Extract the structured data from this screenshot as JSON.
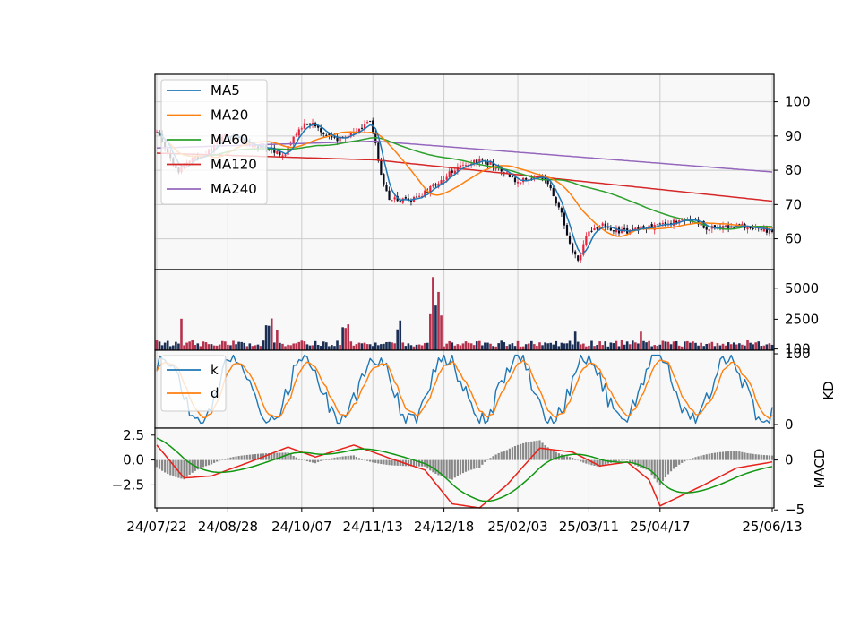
{
  "chart_data": {
    "type": "candlestick-multi-panel",
    "x_tick_labels": [
      "24/07/22",
      "24/08/28",
      "24/10/07",
      "24/11/13",
      "24/12/18",
      "25/02/03",
      "25/03/11",
      "25/04/17",
      "25/06/13"
    ],
    "bar_count": 226,
    "colors": {
      "MA5": "#1f77b4",
      "MA20": "#ff7f0e",
      "MA60": "#2ca02c",
      "MA120": "#d62728",
      "MA240": "#9467bd",
      "k": "#1f77b4",
      "d": "#ff7f0e",
      "up": "#e8213a",
      "down": "#0a0a1a",
      "vol_up": "#b5324d",
      "vol_down": "#1b2f55",
      "macd_dif": "#e8211a",
      "macd_dem": "#109610",
      "macd_hist": "#888888",
      "panel_bg": "#f8f8f8",
      "grid": "#cccccc"
    },
    "price_panel": {
      "ylim": [
        51,
        108
      ],
      "yticks": [
        "60",
        "70",
        "80",
        "90",
        "100"
      ],
      "grid": true,
      "legend_position": "upper-left",
      "legend": [
        "MA5",
        "MA20",
        "MA60",
        "MA120",
        "MA240"
      ],
      "anchors": [
        [
          0,
          91
        ],
        [
          4,
          85
        ],
        [
          8,
          80
        ],
        [
          12,
          83
        ],
        [
          17,
          84
        ],
        [
          22,
          88
        ],
        [
          26,
          91
        ],
        [
          30,
          89
        ],
        [
          36,
          87
        ],
        [
          42,
          86
        ],
        [
          46,
          84
        ],
        [
          52,
          92
        ],
        [
          56,
          94
        ],
        [
          61,
          91
        ],
        [
          65,
          89
        ],
        [
          70,
          90
        ],
        [
          74,
          92
        ],
        [
          78,
          95
        ],
        [
          80,
          88
        ],
        [
          82,
          79
        ],
        [
          85,
          72
        ],
        [
          90,
          71
        ],
        [
          96,
          72
        ],
        [
          102,
          76
        ],
        [
          110,
          81
        ],
        [
          116,
          83
        ],
        [
          122,
          82
        ],
        [
          128,
          79
        ],
        [
          132,
          76
        ],
        [
          136,
          78
        ],
        [
          141,
          78
        ],
        [
          145,
          73
        ],
        [
          148,
          67
        ],
        [
          151,
          58
        ],
        [
          154,
          54
        ],
        [
          158,
          62
        ],
        [
          162,
          64
        ],
        [
          170,
          62
        ],
        [
          178,
          63
        ],
        [
          186,
          64
        ],
        [
          194,
          66
        ],
        [
          202,
          63
        ],
        [
          212,
          64
        ],
        [
          220,
          63
        ],
        [
          225,
          62
        ]
      ],
      "ma_endpoints": {
        "MA5": 62,
        "MA20": 63,
        "MA60": 65,
        "MA120": 71,
        "MA240": 79.5
      }
    },
    "volume_panel": {
      "ylim": [
        0,
        6500
      ],
      "yticks": [
        "100",
        "2500",
        "5000"
      ],
      "peak": 5900
    },
    "kd_panel": {
      "ylabel": "KD",
      "ylim": [
        0,
        100
      ],
      "yticks": [
        "0",
        "100"
      ],
      "legend": [
        "k",
        "d"
      ]
    },
    "macd_panel": {
      "ylabel": "MACD",
      "ylim": [
        -4.8,
        3.2
      ],
      "left_yticks": [
        "2.5",
        "0.0",
        "−2.5"
      ],
      "right_yticks": [
        "0",
        "−5"
      ]
    }
  }
}
